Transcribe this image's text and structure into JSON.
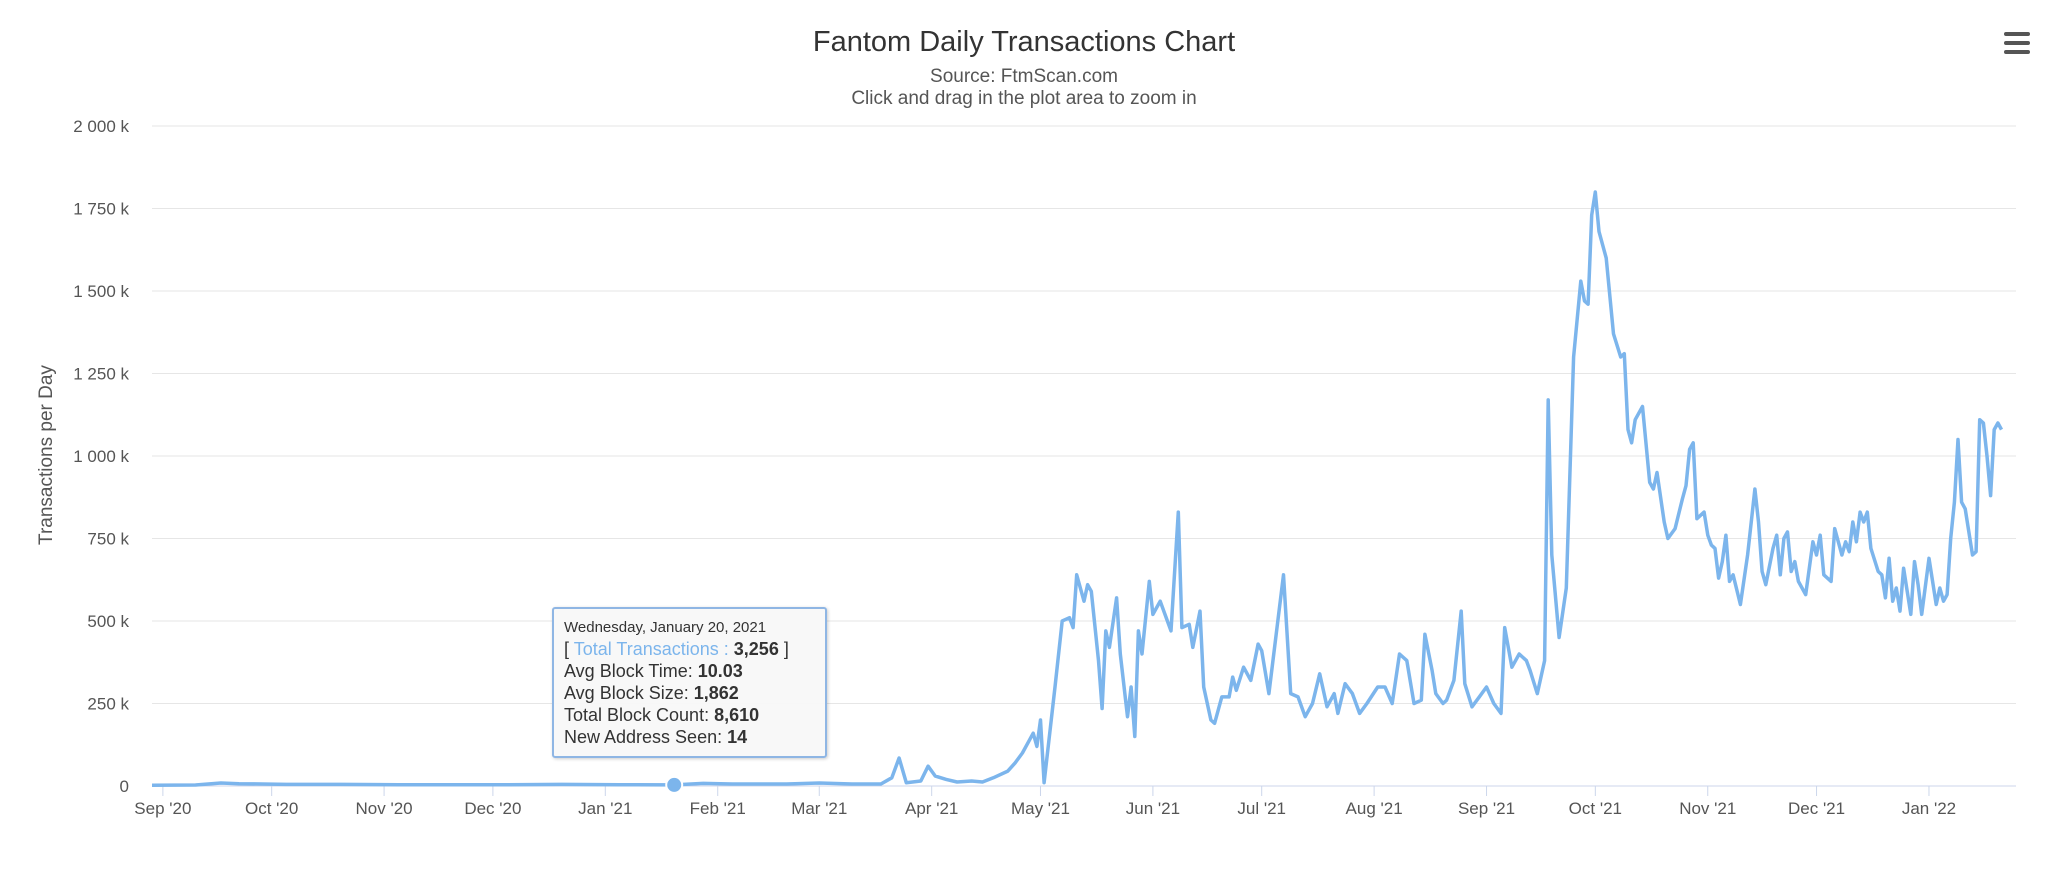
{
  "chart_data": {
    "type": "line",
    "title": "Fantom Daily Transactions Chart",
    "subtitle_source": "Source: FtmScan.com",
    "subtitle_hint": "Click and drag in the plot area to zoom in",
    "ylabel": "Transactions per Day",
    "xlabel": "",
    "ylim": [
      0,
      2000000
    ],
    "xlim": [
      "2020-08-29",
      "2022-01-25"
    ],
    "grid": true,
    "legend": "none",
    "line_color": "#7cb5ec",
    "y_tick_values": [
      0,
      250000,
      500000,
      750000,
      1000000,
      1250000,
      1500000,
      1750000,
      2000000
    ],
    "y_tick_labels": [
      "0",
      "250 k",
      "500 k",
      "750 k",
      "1 000 k",
      "1 250 k",
      "1 500 k",
      "1 750 k",
      "2 000 k"
    ],
    "x_tick_dates": [
      "2020-09-01",
      "2020-10-01",
      "2020-11-01",
      "2020-12-01",
      "2021-01-01",
      "2021-02-01",
      "2021-03-01",
      "2021-04-01",
      "2021-05-01",
      "2021-06-01",
      "2021-07-01",
      "2021-08-01",
      "2021-09-01",
      "2021-10-01",
      "2021-11-01",
      "2021-12-01",
      "2022-01-01"
    ],
    "x_tick_labels": [
      "Sep '20",
      "Oct '20",
      "Nov '20",
      "Dec '20",
      "Jan '21",
      "Feb '21",
      "Mar '21",
      "Apr '21",
      "May '21",
      "Jun '21",
      "Jul '21",
      "Aug '21",
      "Sep '21",
      "Oct '21",
      "Nov '21",
      "Dec '21",
      "Jan '22"
    ],
    "series": [
      {
        "points": [
          [
            "2020-08-29",
            2000
          ],
          [
            "2020-09-10",
            3000
          ],
          [
            "2020-09-17",
            9000
          ],
          [
            "2020-09-22",
            7000
          ],
          [
            "2020-10-05",
            5000
          ],
          [
            "2020-10-20",
            5000
          ],
          [
            "2020-11-05",
            4000
          ],
          [
            "2020-11-20",
            4000
          ],
          [
            "2020-12-05",
            4000
          ],
          [
            "2020-12-20",
            5000
          ],
          [
            "2021-01-05",
            4000
          ],
          [
            "2021-01-20",
            3256
          ],
          [
            "2021-01-28",
            8000
          ],
          [
            "2021-02-05",
            6000
          ],
          [
            "2021-02-20",
            6000
          ],
          [
            "2021-03-01",
            9000
          ],
          [
            "2021-03-10",
            6000
          ],
          [
            "2021-03-18",
            6000
          ],
          [
            "2021-03-21",
            25000
          ],
          [
            "2021-03-23",
            85000
          ],
          [
            "2021-03-25",
            10000
          ],
          [
            "2021-03-29",
            15000
          ],
          [
            "2021-03-31",
            60000
          ],
          [
            "2021-04-02",
            30000
          ],
          [
            "2021-04-05",
            20000
          ],
          [
            "2021-04-08",
            12000
          ],
          [
            "2021-04-12",
            15000
          ],
          [
            "2021-04-15",
            12000
          ],
          [
            "2021-04-18",
            25000
          ],
          [
            "2021-04-22",
            45000
          ],
          [
            "2021-04-24",
            70000
          ],
          [
            "2021-04-26",
            100000
          ],
          [
            "2021-04-28",
            140000
          ],
          [
            "2021-04-29",
            160000
          ],
          [
            "2021-04-30",
            120000
          ],
          [
            "2021-05-01",
            200000
          ],
          [
            "2021-05-02",
            10000
          ],
          [
            "2021-05-05",
            300000
          ],
          [
            "2021-05-07",
            500000
          ],
          [
            "2021-05-09",
            510000
          ],
          [
            "2021-05-10",
            480000
          ],
          [
            "2021-05-11",
            640000
          ],
          [
            "2021-05-13",
            560000
          ],
          [
            "2021-05-14",
            610000
          ],
          [
            "2021-05-15",
            590000
          ],
          [
            "2021-05-17",
            380000
          ],
          [
            "2021-05-18",
            235000
          ],
          [
            "2021-05-19",
            470000
          ],
          [
            "2021-05-20",
            420000
          ],
          [
            "2021-05-22",
            570000
          ],
          [
            "2021-05-23",
            400000
          ],
          [
            "2021-05-25",
            210000
          ],
          [
            "2021-05-26",
            300000
          ],
          [
            "2021-05-27",
            150000
          ],
          [
            "2021-05-28",
            470000
          ],
          [
            "2021-05-29",
            400000
          ],
          [
            "2021-05-31",
            620000
          ],
          [
            "2021-06-01",
            520000
          ],
          [
            "2021-06-03",
            560000
          ],
          [
            "2021-06-05",
            500000
          ],
          [
            "2021-06-06",
            470000
          ],
          [
            "2021-06-08",
            830000
          ],
          [
            "2021-06-09",
            480000
          ],
          [
            "2021-06-11",
            490000
          ],
          [
            "2021-06-12",
            420000
          ],
          [
            "2021-06-14",
            530000
          ],
          [
            "2021-06-15",
            300000
          ],
          [
            "2021-06-17",
            200000
          ],
          [
            "2021-06-18",
            190000
          ],
          [
            "2021-06-20",
            270000
          ],
          [
            "2021-06-22",
            270000
          ],
          [
            "2021-06-23",
            330000
          ],
          [
            "2021-06-24",
            290000
          ],
          [
            "2021-06-26",
            360000
          ],
          [
            "2021-06-28",
            320000
          ],
          [
            "2021-06-30",
            430000
          ],
          [
            "2021-07-01",
            410000
          ],
          [
            "2021-07-03",
            280000
          ],
          [
            "2021-07-05",
            460000
          ],
          [
            "2021-07-07",
            640000
          ],
          [
            "2021-07-09",
            280000
          ],
          [
            "2021-07-11",
            270000
          ],
          [
            "2021-07-13",
            210000
          ],
          [
            "2021-07-15",
            250000
          ],
          [
            "2021-07-17",
            340000
          ],
          [
            "2021-07-19",
            240000
          ],
          [
            "2021-07-21",
            280000
          ],
          [
            "2021-07-22",
            220000
          ],
          [
            "2021-07-24",
            310000
          ],
          [
            "2021-07-26",
            280000
          ],
          [
            "2021-07-28",
            220000
          ],
          [
            "2021-07-30",
            250000
          ],
          [
            "2021-08-02",
            300000
          ],
          [
            "2021-08-04",
            300000
          ],
          [
            "2021-08-06",
            250000
          ],
          [
            "2021-08-08",
            400000
          ],
          [
            "2021-08-10",
            380000
          ],
          [
            "2021-08-12",
            250000
          ],
          [
            "2021-08-14",
            260000
          ],
          [
            "2021-08-15",
            460000
          ],
          [
            "2021-08-17",
            350000
          ],
          [
            "2021-08-18",
            280000
          ],
          [
            "2021-08-20",
            250000
          ],
          [
            "2021-08-21",
            260000
          ],
          [
            "2021-08-23",
            320000
          ],
          [
            "2021-08-25",
            530000
          ],
          [
            "2021-08-26",
            310000
          ],
          [
            "2021-08-28",
            240000
          ],
          [
            "2021-08-30",
            270000
          ],
          [
            "2021-09-01",
            300000
          ],
          [
            "2021-09-03",
            250000
          ],
          [
            "2021-09-05",
            220000
          ],
          [
            "2021-09-06",
            480000
          ],
          [
            "2021-09-08",
            360000
          ],
          [
            "2021-09-10",
            400000
          ],
          [
            "2021-09-12",
            380000
          ],
          [
            "2021-09-13",
            350000
          ],
          [
            "2021-09-15",
            280000
          ],
          [
            "2021-09-17",
            380000
          ],
          [
            "2021-09-18",
            1170000
          ],
          [
            "2021-09-19",
            700000
          ],
          [
            "2021-09-21",
            450000
          ],
          [
            "2021-09-23",
            600000
          ],
          [
            "2021-09-25",
            1300000
          ],
          [
            "2021-09-27",
            1530000
          ],
          [
            "2021-09-28",
            1470000
          ],
          [
            "2021-09-29",
            1460000
          ],
          [
            "2021-09-30",
            1730000
          ],
          [
            "2021-10-01",
            1800000
          ],
          [
            "2021-10-02",
            1680000
          ],
          [
            "2021-10-04",
            1600000
          ],
          [
            "2021-10-06",
            1370000
          ],
          [
            "2021-10-08",
            1300000
          ],
          [
            "2021-10-09",
            1310000
          ],
          [
            "2021-10-10",
            1080000
          ],
          [
            "2021-10-11",
            1040000
          ],
          [
            "2021-10-12",
            1110000
          ],
          [
            "2021-10-14",
            1150000
          ],
          [
            "2021-10-16",
            920000
          ],
          [
            "2021-10-17",
            900000
          ],
          [
            "2021-10-18",
            950000
          ],
          [
            "2021-10-20",
            800000
          ],
          [
            "2021-10-21",
            750000
          ],
          [
            "2021-10-23",
            780000
          ],
          [
            "2021-10-25",
            870000
          ],
          [
            "2021-10-26",
            910000
          ],
          [
            "2021-10-27",
            1020000
          ],
          [
            "2021-10-28",
            1040000
          ],
          [
            "2021-10-29",
            810000
          ],
          [
            "2021-10-31",
            830000
          ],
          [
            "2021-11-01",
            760000
          ],
          [
            "2021-11-02",
            730000
          ],
          [
            "2021-11-03",
            720000
          ],
          [
            "2021-11-04",
            630000
          ],
          [
            "2021-11-05",
            680000
          ],
          [
            "2021-11-06",
            760000
          ],
          [
            "2021-11-07",
            620000
          ],
          [
            "2021-11-08",
            640000
          ],
          [
            "2021-11-10",
            550000
          ],
          [
            "2021-11-12",
            700000
          ],
          [
            "2021-11-14",
            900000
          ],
          [
            "2021-11-15",
            800000
          ],
          [
            "2021-11-16",
            650000
          ],
          [
            "2021-11-17",
            610000
          ],
          [
            "2021-11-19",
            720000
          ],
          [
            "2021-11-20",
            760000
          ],
          [
            "2021-11-21",
            640000
          ],
          [
            "2021-11-22",
            750000
          ],
          [
            "2021-11-23",
            770000
          ],
          [
            "2021-11-24",
            650000
          ],
          [
            "2021-11-25",
            680000
          ],
          [
            "2021-11-26",
            620000
          ],
          [
            "2021-11-28",
            580000
          ],
          [
            "2021-11-30",
            740000
          ],
          [
            "2021-12-01",
            700000
          ],
          [
            "2021-12-02",
            760000
          ],
          [
            "2021-12-03",
            640000
          ],
          [
            "2021-12-05",
            620000
          ],
          [
            "2021-12-06",
            780000
          ],
          [
            "2021-12-08",
            700000
          ],
          [
            "2021-12-09",
            740000
          ],
          [
            "2021-12-10",
            710000
          ],
          [
            "2021-12-11",
            800000
          ],
          [
            "2021-12-12",
            740000
          ],
          [
            "2021-12-13",
            830000
          ],
          [
            "2021-12-14",
            800000
          ],
          [
            "2021-12-15",
            830000
          ],
          [
            "2021-12-16",
            720000
          ],
          [
            "2021-12-18",
            650000
          ],
          [
            "2021-12-19",
            640000
          ],
          [
            "2021-12-20",
            570000
          ],
          [
            "2021-12-21",
            690000
          ],
          [
            "2021-12-22",
            560000
          ],
          [
            "2021-12-23",
            600000
          ],
          [
            "2021-12-24",
            530000
          ],
          [
            "2021-12-25",
            660000
          ],
          [
            "2021-12-27",
            520000
          ],
          [
            "2021-12-28",
            680000
          ],
          [
            "2021-12-29",
            610000
          ],
          [
            "2021-12-30",
            520000
          ],
          [
            "2022-01-01",
            690000
          ],
          [
            "2022-01-03",
            550000
          ],
          [
            "2022-01-04",
            600000
          ],
          [
            "2022-01-05",
            560000
          ],
          [
            "2022-01-06",
            580000
          ],
          [
            "2022-01-07",
            750000
          ],
          [
            "2022-01-08",
            860000
          ],
          [
            "2022-01-09",
            1050000
          ],
          [
            "2022-01-10",
            860000
          ],
          [
            "2022-01-11",
            840000
          ],
          [
            "2022-01-13",
            700000
          ],
          [
            "2022-01-14",
            710000
          ],
          [
            "2022-01-15",
            1110000
          ],
          [
            "2022-01-16",
            1100000
          ],
          [
            "2022-01-17",
            1000000
          ],
          [
            "2022-01-18",
            880000
          ],
          [
            "2022-01-19",
            1080000
          ],
          [
            "2022-01-20",
            1100000
          ],
          [
            "2022-01-21",
            1080000
          ]
        ]
      }
    ],
    "highlight": {
      "date": "2021-01-20",
      "value": 3256
    }
  },
  "tooltip": {
    "date": "Wednesday, January 20, 2021",
    "open": "[ ",
    "series_label": "Total Transactions :",
    "series_value": "3,256",
    "close": " ]",
    "rows": [
      {
        "label": "Avg Block Time: ",
        "value": "10.03"
      },
      {
        "label": "Avg Block Size: ",
        "value": "1,862"
      },
      {
        "label": "Total Block Count: ",
        "value": "8,610"
      },
      {
        "label": "New Address Seen: ",
        "value": "14"
      }
    ]
  },
  "menu": {
    "icon": "hamburger-menu-icon"
  }
}
